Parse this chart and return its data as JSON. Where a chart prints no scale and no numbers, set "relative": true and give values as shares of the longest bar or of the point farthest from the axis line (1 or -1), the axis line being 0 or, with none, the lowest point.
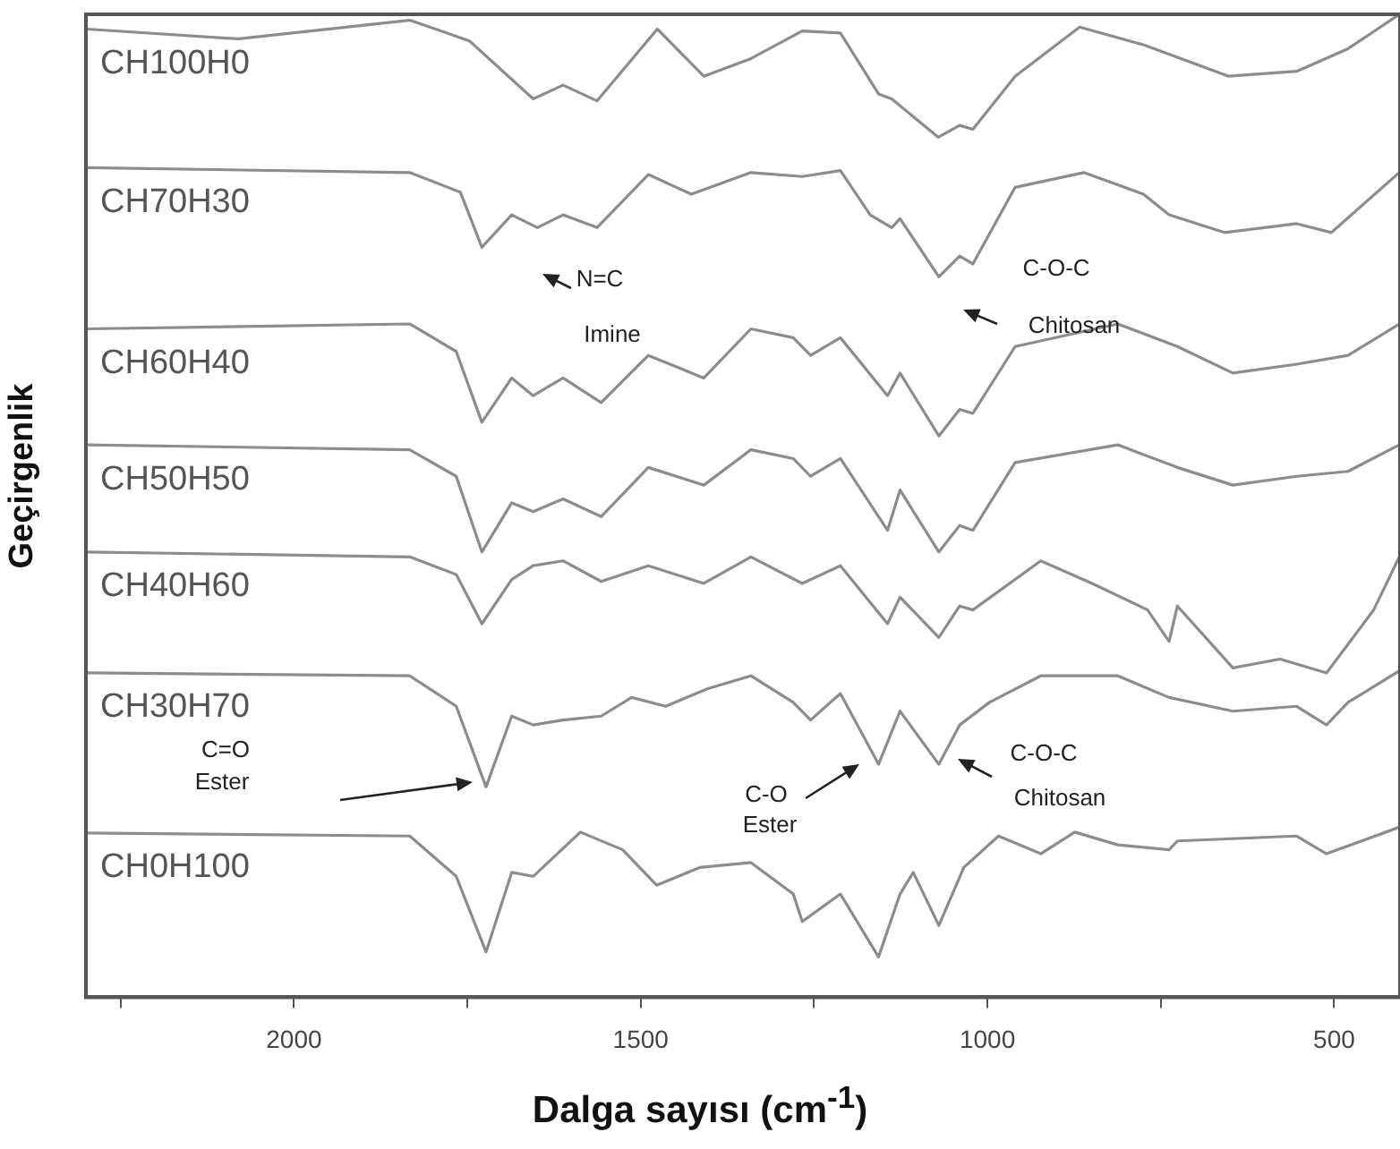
{
  "chart_data": {
    "type": "line",
    "relative": true,
    "xlabel": "Dalga sayısı (cm$^{-1}$)",
    "ylabel": "Geçirgenlik",
    "xlim": [
      2300,
      405
    ],
    "xticks": [
      {
        "value": 2250,
        "label": null
      },
      2000,
      {
        "value": 1750,
        "label": null
      },
      1500,
      {
        "value": 1250,
        "label": null
      },
      1000,
      {
        "value": 750,
        "label": null
      },
      500
    ],
    "grid": false,
    "legend": false,
    "marker": "none",
    "line_style": "solid",
    "series": [
      {
        "name": "CH100H0",
        "color": "#8c8c8c",
        "x": [
          2298,
          2080,
          1833,
          1747,
          1655,
          1612,
          1563,
          1476,
          1409,
          1341,
          1267,
          1212,
          1157,
          1138,
          1071,
          1040,
          1021,
          960,
          867,
          775,
          652,
          554,
          480,
          406
        ],
        "values": [
          0.985,
          0.975,
          0.994,
          0.973,
          0.914,
          0.928,
          0.912,
          0.985,
          0.937,
          0.955,
          0.983,
          0.981,
          0.919,
          0.914,
          0.875,
          0.887,
          0.883,
          0.937,
          0.987,
          0.969,
          0.937,
          0.942,
          0.965,
          1.0
        ]
      },
      {
        "name": "CH70H30",
        "color": "#8c8c8c",
        "x": [
          2298,
          1833,
          1760,
          1729,
          1686,
          1649,
          1612,
          1563,
          1489,
          1427,
          1341,
          1267,
          1212,
          1169,
          1138,
          1126,
          1070,
          1040,
          1021,
          960,
          861,
          775,
          738,
          658,
          554,
          504,
          406
        ],
        "values": [
          0.844,
          0.839,
          0.819,
          0.763,
          0.796,
          0.783,
          0.796,
          0.783,
          0.837,
          0.817,
          0.839,
          0.835,
          0.841,
          0.796,
          0.783,
          0.792,
          0.733,
          0.754,
          0.746,
          0.824,
          0.839,
          0.817,
          0.796,
          0.778,
          0.787,
          0.778,
          0.839
        ]
      },
      {
        "name": "CH60H40",
        "color": "#8c8c8c",
        "x": [
          2298,
          1833,
          1766,
          1729,
          1686,
          1655,
          1612,
          1557,
          1489,
          1409,
          1341,
          1280,
          1255,
          1212,
          1144,
          1126,
          1070,
          1040,
          1021,
          960,
          812,
          726,
          646,
          554,
          480,
          406
        ],
        "values": [
          0.68,
          0.685,
          0.657,
          0.585,
          0.63,
          0.612,
          0.63,
          0.605,
          0.653,
          0.63,
          0.68,
          0.671,
          0.653,
          0.671,
          0.612,
          0.635,
          0.571,
          0.598,
          0.594,
          0.662,
          0.685,
          0.662,
          0.635,
          0.644,
          0.653,
          0.685
        ]
      },
      {
        "name": "CH50H50",
        "color": "#8c8c8c",
        "x": [
          2298,
          1833,
          1766,
          1729,
          1686,
          1655,
          1612,
          1557,
          1489,
          1409,
          1341,
          1280,
          1255,
          1212,
          1144,
          1126,
          1070,
          1040,
          1021,
          960,
          812,
          726,
          646,
          554,
          480,
          406
        ],
        "values": [
          0.562,
          0.557,
          0.53,
          0.453,
          0.503,
          0.494,
          0.507,
          0.489,
          0.539,
          0.521,
          0.557,
          0.548,
          0.53,
          0.548,
          0.475,
          0.516,
          0.453,
          0.48,
          0.475,
          0.544,
          0.562,
          0.539,
          0.521,
          0.53,
          0.535,
          0.562
        ]
      },
      {
        "name": "CH40H60",
        "color": "#8c8c8c",
        "x": [
          2298,
          1833,
          1766,
          1729,
          1686,
          1655,
          1612,
          1557,
          1489,
          1409,
          1341,
          1267,
          1212,
          1144,
          1126,
          1070,
          1040,
          1021,
          923,
          849,
          769,
          738,
          726,
          646,
          578,
          511,
          443,
          406
        ],
        "values": [
          0.453,
          0.448,
          0.43,
          0.38,
          0.425,
          0.439,
          0.444,
          0.423,
          0.439,
          0.421,
          0.448,
          0.421,
          0.439,
          0.38,
          0.407,
          0.366,
          0.398,
          0.394,
          0.444,
          0.421,
          0.394,
          0.362,
          0.398,
          0.335,
          0.344,
          0.33,
          0.394,
          0.448
        ]
      },
      {
        "name": "CH30H70",
        "color": "#8c8c8c",
        "x": [
          2298,
          1833,
          1766,
          1723,
          1686,
          1655,
          1612,
          1557,
          1513,
          1464,
          1403,
          1341,
          1280,
          1255,
          1212,
          1157,
          1126,
          1070,
          1040,
          997,
          923,
          812,
          738,
          646,
          554,
          511,
          480,
          406
        ],
        "values": [
          0.33,
          0.327,
          0.296,
          0.214,
          0.286,
          0.277,
          0.282,
          0.286,
          0.305,
          0.296,
          0.314,
          0.327,
          0.3,
          0.282,
          0.309,
          0.237,
          0.291,
          0.237,
          0.277,
          0.3,
          0.327,
          0.327,
          0.305,
          0.291,
          0.296,
          0.277,
          0.3,
          0.332
        ]
      },
      {
        "name": "CH0H100",
        "color": "#8c8c8c",
        "x": [
          2298,
          1833,
          1766,
          1723,
          1686,
          1655,
          1587,
          1526,
          1477,
          1415,
          1341,
          1280,
          1267,
          1212,
          1157,
          1126,
          1107,
          1070,
          1034,
          984,
          923,
          874,
          812,
          738,
          726,
          554,
          511,
          406
        ],
        "values": [
          0.167,
          0.164,
          0.123,
          0.046,
          0.127,
          0.123,
          0.168,
          0.15,
          0.114,
          0.132,
          0.137,
          0.105,
          0.077,
          0.105,
          0.041,
          0.105,
          0.127,
          0.073,
          0.132,
          0.164,
          0.146,
          0.168,
          0.155,
          0.15,
          0.159,
          0.164,
          0.146,
          0.173
        ]
      }
    ],
    "annotations": [
      "N=C\nImine",
      "C-O-C\nChitosan",
      "C=O\nEster",
      "C-O\nEster",
      "C-O-C\nChitosan"
    ]
  }
}
